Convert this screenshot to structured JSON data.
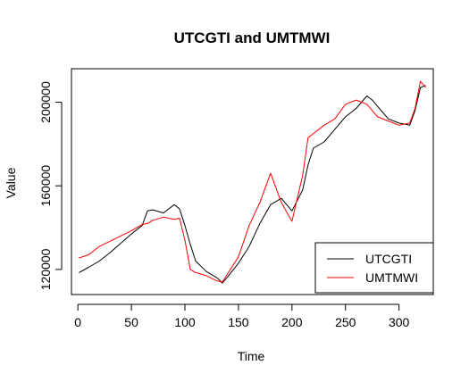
{
  "chart_data": {
    "type": "line",
    "title": "UTCGTI and UMTMWI",
    "xlabel": "Time",
    "ylabel": "Value",
    "xlim": [
      -6,
      332
    ],
    "ylim": [
      108000,
      216000
    ],
    "x_ticks": [
      0,
      50,
      100,
      150,
      200,
      250,
      300
    ],
    "y_ticks": [
      120000,
      160000,
      200000
    ],
    "grid": false,
    "legend_position": "bottom-right",
    "x": [
      1,
      10,
      20,
      30,
      40,
      50,
      60,
      65,
      70,
      80,
      90,
      95,
      100,
      105,
      110,
      120,
      130,
      135,
      140,
      150,
      160,
      170,
      180,
      190,
      200,
      210,
      215,
      220,
      230,
      240,
      250,
      260,
      270,
      275,
      280,
      290,
      300,
      310,
      315,
      320,
      325
    ],
    "series": [
      {
        "name": "UTCGTI",
        "color": "#000000",
        "values": [
          118500,
          121000,
          124000,
          128000,
          132500,
          137000,
          141000,
          148000,
          148500,
          147000,
          151000,
          149000,
          141000,
          132000,
          124000,
          119000,
          116000,
          113500,
          116500,
          123000,
          131000,
          142000,
          151000,
          154000,
          148000,
          158000,
          170000,
          178000,
          181000,
          187000,
          193000,
          197000,
          203000,
          201000,
          198000,
          192000,
          190000,
          189000,
          196000,
          207000,
          208000
        ]
      },
      {
        "name": "UMTMWI",
        "color": "#ff0000",
        "values": [
          125500,
          127000,
          131000,
          133500,
          136000,
          138500,
          141500,
          142000,
          143500,
          145000,
          144000,
          144500,
          134000,
          120000,
          118500,
          117000,
          114500,
          114000,
          118000,
          126000,
          141000,
          152000,
          166000,
          152000,
          143000,
          165000,
          183000,
          185000,
          189000,
          192000,
          199000,
          201000,
          199000,
          196000,
          193000,
          191000,
          189000,
          190000,
          197000,
          210000,
          207000
        ]
      }
    ]
  }
}
